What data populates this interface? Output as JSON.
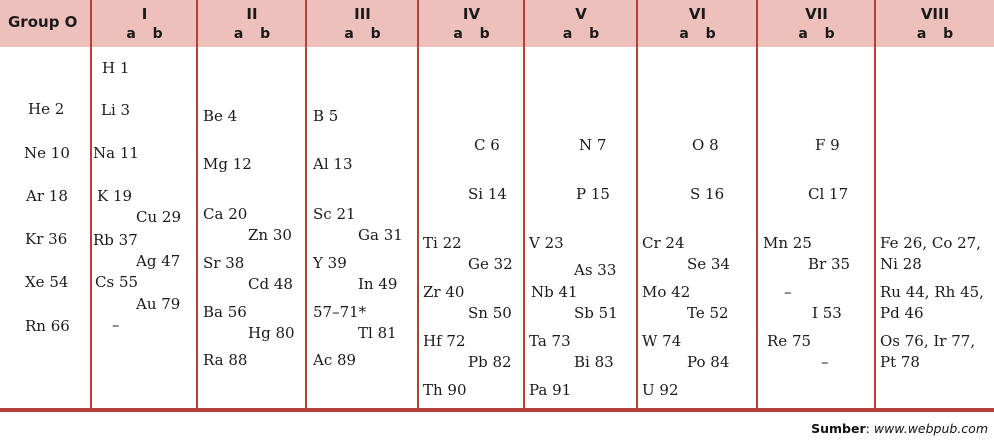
{
  "header": {
    "group0": "Group O",
    "groups": [
      {
        "num": "I",
        "ab": "a b"
      },
      {
        "num": "II",
        "ab": "a b"
      },
      {
        "num": "III",
        "ab": "a b"
      },
      {
        "num": "IV",
        "ab": "a b"
      },
      {
        "num": "V",
        "ab": "a b"
      },
      {
        "num": "VI",
        "ab": "a b"
      },
      {
        "num": "VII",
        "ab": "a b"
      },
      {
        "num": "VIII",
        "ab": "a b"
      }
    ]
  },
  "group0": [
    "He 2",
    "Ne 10",
    "Ar 18",
    "Kr 36",
    "Xe 54",
    "Rn 66"
  ],
  "group1": [
    "H 1",
    "Li 3",
    "Na 11",
    "K 19",
    "Cu 29",
    "Rb 37",
    "Ag 47",
    "Cs 55",
    "Au 79",
    "–"
  ],
  "group2": [
    "Be 4",
    "Mg 12",
    "Ca 20",
    "Zn 30",
    "Sr 38",
    "Cd 48",
    "Ba 56",
    "Hg 80",
    "Ra 88"
  ],
  "group3": [
    "B 5",
    "Al 13",
    "Sc 21",
    "Ga 31",
    "Y 39",
    "In 49",
    "57–71*",
    "Tl 81",
    "Ac 89"
  ],
  "group4": [
    "C 6",
    "Si 14",
    "Ti 22",
    "Ge 32",
    "Zr 40",
    "Sn 50",
    "Hf 72",
    "Pb 82",
    "Th 90"
  ],
  "group5": [
    "N 7",
    "P 15",
    "V 23",
    "As 33",
    "Nb 41",
    "Sb 51",
    "Ta 73",
    "Bi 83",
    "Pa 91"
  ],
  "group6": [
    "O 8",
    "S 16",
    "Cr 24",
    "Se 34",
    "Mo 42",
    "Te 52",
    "W 74",
    "Po 84",
    "U 92"
  ],
  "group7": [
    "F 9",
    "Cl 17",
    "Mn 25",
    "Br 35",
    "–",
    "I 53",
    "Re 75",
    "–"
  ],
  "group8": [
    "Fe 26, Co 27,",
    "Ni 28",
    "Ru 44, Rh 45,",
    "Pd 46",
    "Os 76, Ir 77,",
    "Pt 78"
  ],
  "source": {
    "label": "Sumber",
    "sep": ": ",
    "url": "www.webpub.com"
  }
}
